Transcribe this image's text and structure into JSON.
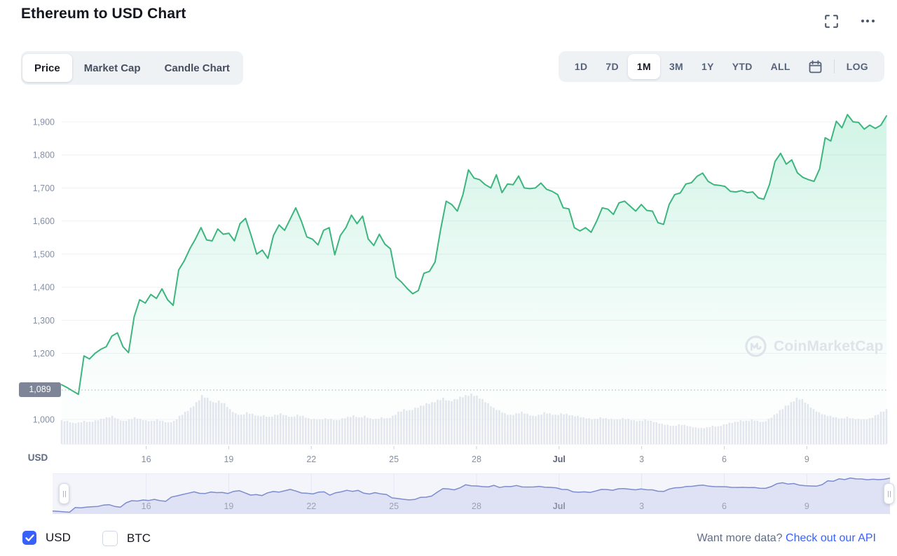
{
  "header": {
    "title": "Ethereum to USD Chart",
    "fullscreen_icon": "fullscreen-icon",
    "more_icon": "ellipsis-icon"
  },
  "chart_tabs": {
    "items": [
      {
        "label": "Price",
        "active": true
      },
      {
        "label": "Market Cap",
        "active": false
      },
      {
        "label": "Candle Chart",
        "active": false
      }
    ]
  },
  "range_toolbar": {
    "items": [
      {
        "label": "1D",
        "active": false
      },
      {
        "label": "7D",
        "active": false
      },
      {
        "label": "1M",
        "active": true
      },
      {
        "label": "3M",
        "active": false
      },
      {
        "label": "1Y",
        "active": false
      },
      {
        "label": "YTD",
        "active": false
      },
      {
        "label": "ALL",
        "active": false
      }
    ],
    "calendar_icon": "calendar-icon",
    "log_label": "LOG"
  },
  "axis": {
    "unit_label": "USD"
  },
  "watermark": {
    "logo_icon": "coinmarketcap-logo-icon",
    "text": "CoinMarketCap"
  },
  "chart_data": {
    "type": "area",
    "title": "Ethereum to USD Chart",
    "unit": "USD",
    "ylim": [
      1000,
      1950
    ],
    "grid": true,
    "y_ticks": [
      {
        "label": "1,900",
        "value": 1900
      },
      {
        "label": "1,800",
        "value": 1800
      },
      {
        "label": "1,700",
        "value": 1700
      },
      {
        "label": "1,600",
        "value": 1600
      },
      {
        "label": "1,500",
        "value": 1500
      },
      {
        "label": "1,400",
        "value": 1400
      },
      {
        "label": "1,300",
        "value": 1300
      },
      {
        "label": "1,200",
        "value": 1200
      },
      {
        "label": "1,000",
        "value": 1000
      }
    ],
    "x_ticks": [
      {
        "label": "16"
      },
      {
        "label": "19"
      },
      {
        "label": "22"
      },
      {
        "label": "25"
      },
      {
        "label": "28"
      },
      {
        "label": "Jul",
        "bold": true
      },
      {
        "label": "3"
      },
      {
        "label": "6"
      },
      {
        "label": "9"
      }
    ],
    "current_price": 1089,
    "current_price_label": "1,089",
    "prices": [
      1105,
      1096,
      1086,
      1076,
      1192,
      1183,
      1200,
      1212,
      1220,
      1252,
      1262,
      1220,
      1202,
      1310,
      1362,
      1352,
      1378,
      1366,
      1395,
      1362,
      1345,
      1452,
      1480,
      1516,
      1546,
      1580,
      1543,
      1540,
      1576,
      1560,
      1563,
      1540,
      1592,
      1608,
      1556,
      1500,
      1512,
      1487,
      1556,
      1588,
      1572,
      1606,
      1640,
      1600,
      1552,
      1545,
      1528,
      1572,
      1580,
      1498,
      1556,
      1580,
      1618,
      1592,
      1615,
      1546,
      1526,
      1560,
      1530,
      1516,
      1430,
      1415,
      1396,
      1380,
      1390,
      1442,
      1448,
      1476,
      1575,
      1660,
      1650,
      1630,
      1680,
      1755,
      1730,
      1725,
      1710,
      1700,
      1740,
      1686,
      1712,
      1710,
      1736,
      1700,
      1698,
      1700,
      1715,
      1696,
      1690,
      1680,
      1640,
      1637,
      1580,
      1570,
      1580,
      1566,
      1600,
      1640,
      1636,
      1620,
      1655,
      1660,
      1645,
      1630,
      1650,
      1632,
      1630,
      1595,
      1590,
      1650,
      1680,
      1685,
      1712,
      1716,
      1735,
      1745,
      1720,
      1710,
      1708,
      1705,
      1690,
      1688,
      1692,
      1686,
      1688,
      1670,
      1666,
      1710,
      1780,
      1805,
      1772,
      1785,
      1746,
      1732,
      1725,
      1720,
      1758,
      1852,
      1842,
      1902,
      1882,
      1922,
      1900,
      1898,
      1878,
      1890,
      1880,
      1890,
      1918
    ],
    "volume_rel": [
      47,
      46,
      42,
      43,
      46,
      44,
      47,
      50,
      53,
      56,
      50,
      46,
      49,
      53,
      50,
      47,
      46,
      49,
      46,
      43,
      46,
      56,
      64,
      72,
      83,
      97,
      92,
      83,
      86,
      81,
      69,
      61,
      58,
      63,
      60,
      56,
      57,
      54,
      58,
      61,
      57,
      54,
      58,
      56,
      51,
      50,
      49,
      51,
      50,
      47,
      51,
      54,
      57,
      53,
      56,
      51,
      50,
      53,
      51,
      56,
      64,
      69,
      67,
      72,
      76,
      81,
      83,
      88,
      92,
      86,
      89,
      94,
      97,
      100,
      96,
      89,
      81,
      72,
      67,
      61,
      58,
      61,
      64,
      60,
      56,
      58,
      63,
      61,
      58,
      61,
      60,
      57,
      56,
      53,
      51,
      50,
      53,
      51,
      50,
      49,
      51,
      50,
      47,
      46,
      49,
      46,
      43,
      40,
      38,
      36,
      39,
      38,
      35,
      33,
      32,
      33,
      36,
      35,
      39,
      42,
      44,
      47,
      46,
      49,
      46,
      44,
      50,
      58,
      67,
      76,
      83,
      92,
      89,
      79,
      69,
      63,
      58,
      56,
      53,
      51,
      54,
      51,
      50,
      49,
      51,
      57,
      64,
      69
    ],
    "navigator_x_ticks": [
      "16",
      "19",
      "22",
      "25",
      "28",
      "Jul",
      "3",
      "6",
      "9"
    ]
  },
  "footer": {
    "currencies": [
      {
        "label": "USD",
        "checked": true
      },
      {
        "label": "BTC",
        "checked": false
      }
    ],
    "promo": {
      "text": "Want more data?",
      "link_label": "Check out our API"
    }
  },
  "colors": {
    "line_green": "#3cb57f",
    "area_green": "#16c784",
    "volume_bar": "#e4e7f0",
    "grid": "#f0f1f5",
    "axis_text": "#848fa5",
    "axis_text_bold": "#5a6478",
    "dotted_line": "#a6adbb",
    "badge_bg": "#7d8596",
    "nav_bg": "#f4f5fb",
    "nav_fill": "#dfe2f5",
    "nav_line": "#7c8ccd",
    "nav_grid": "#e4e7f4",
    "accent_blue": "#3861fb",
    "watermark": "#dfe3ea"
  }
}
